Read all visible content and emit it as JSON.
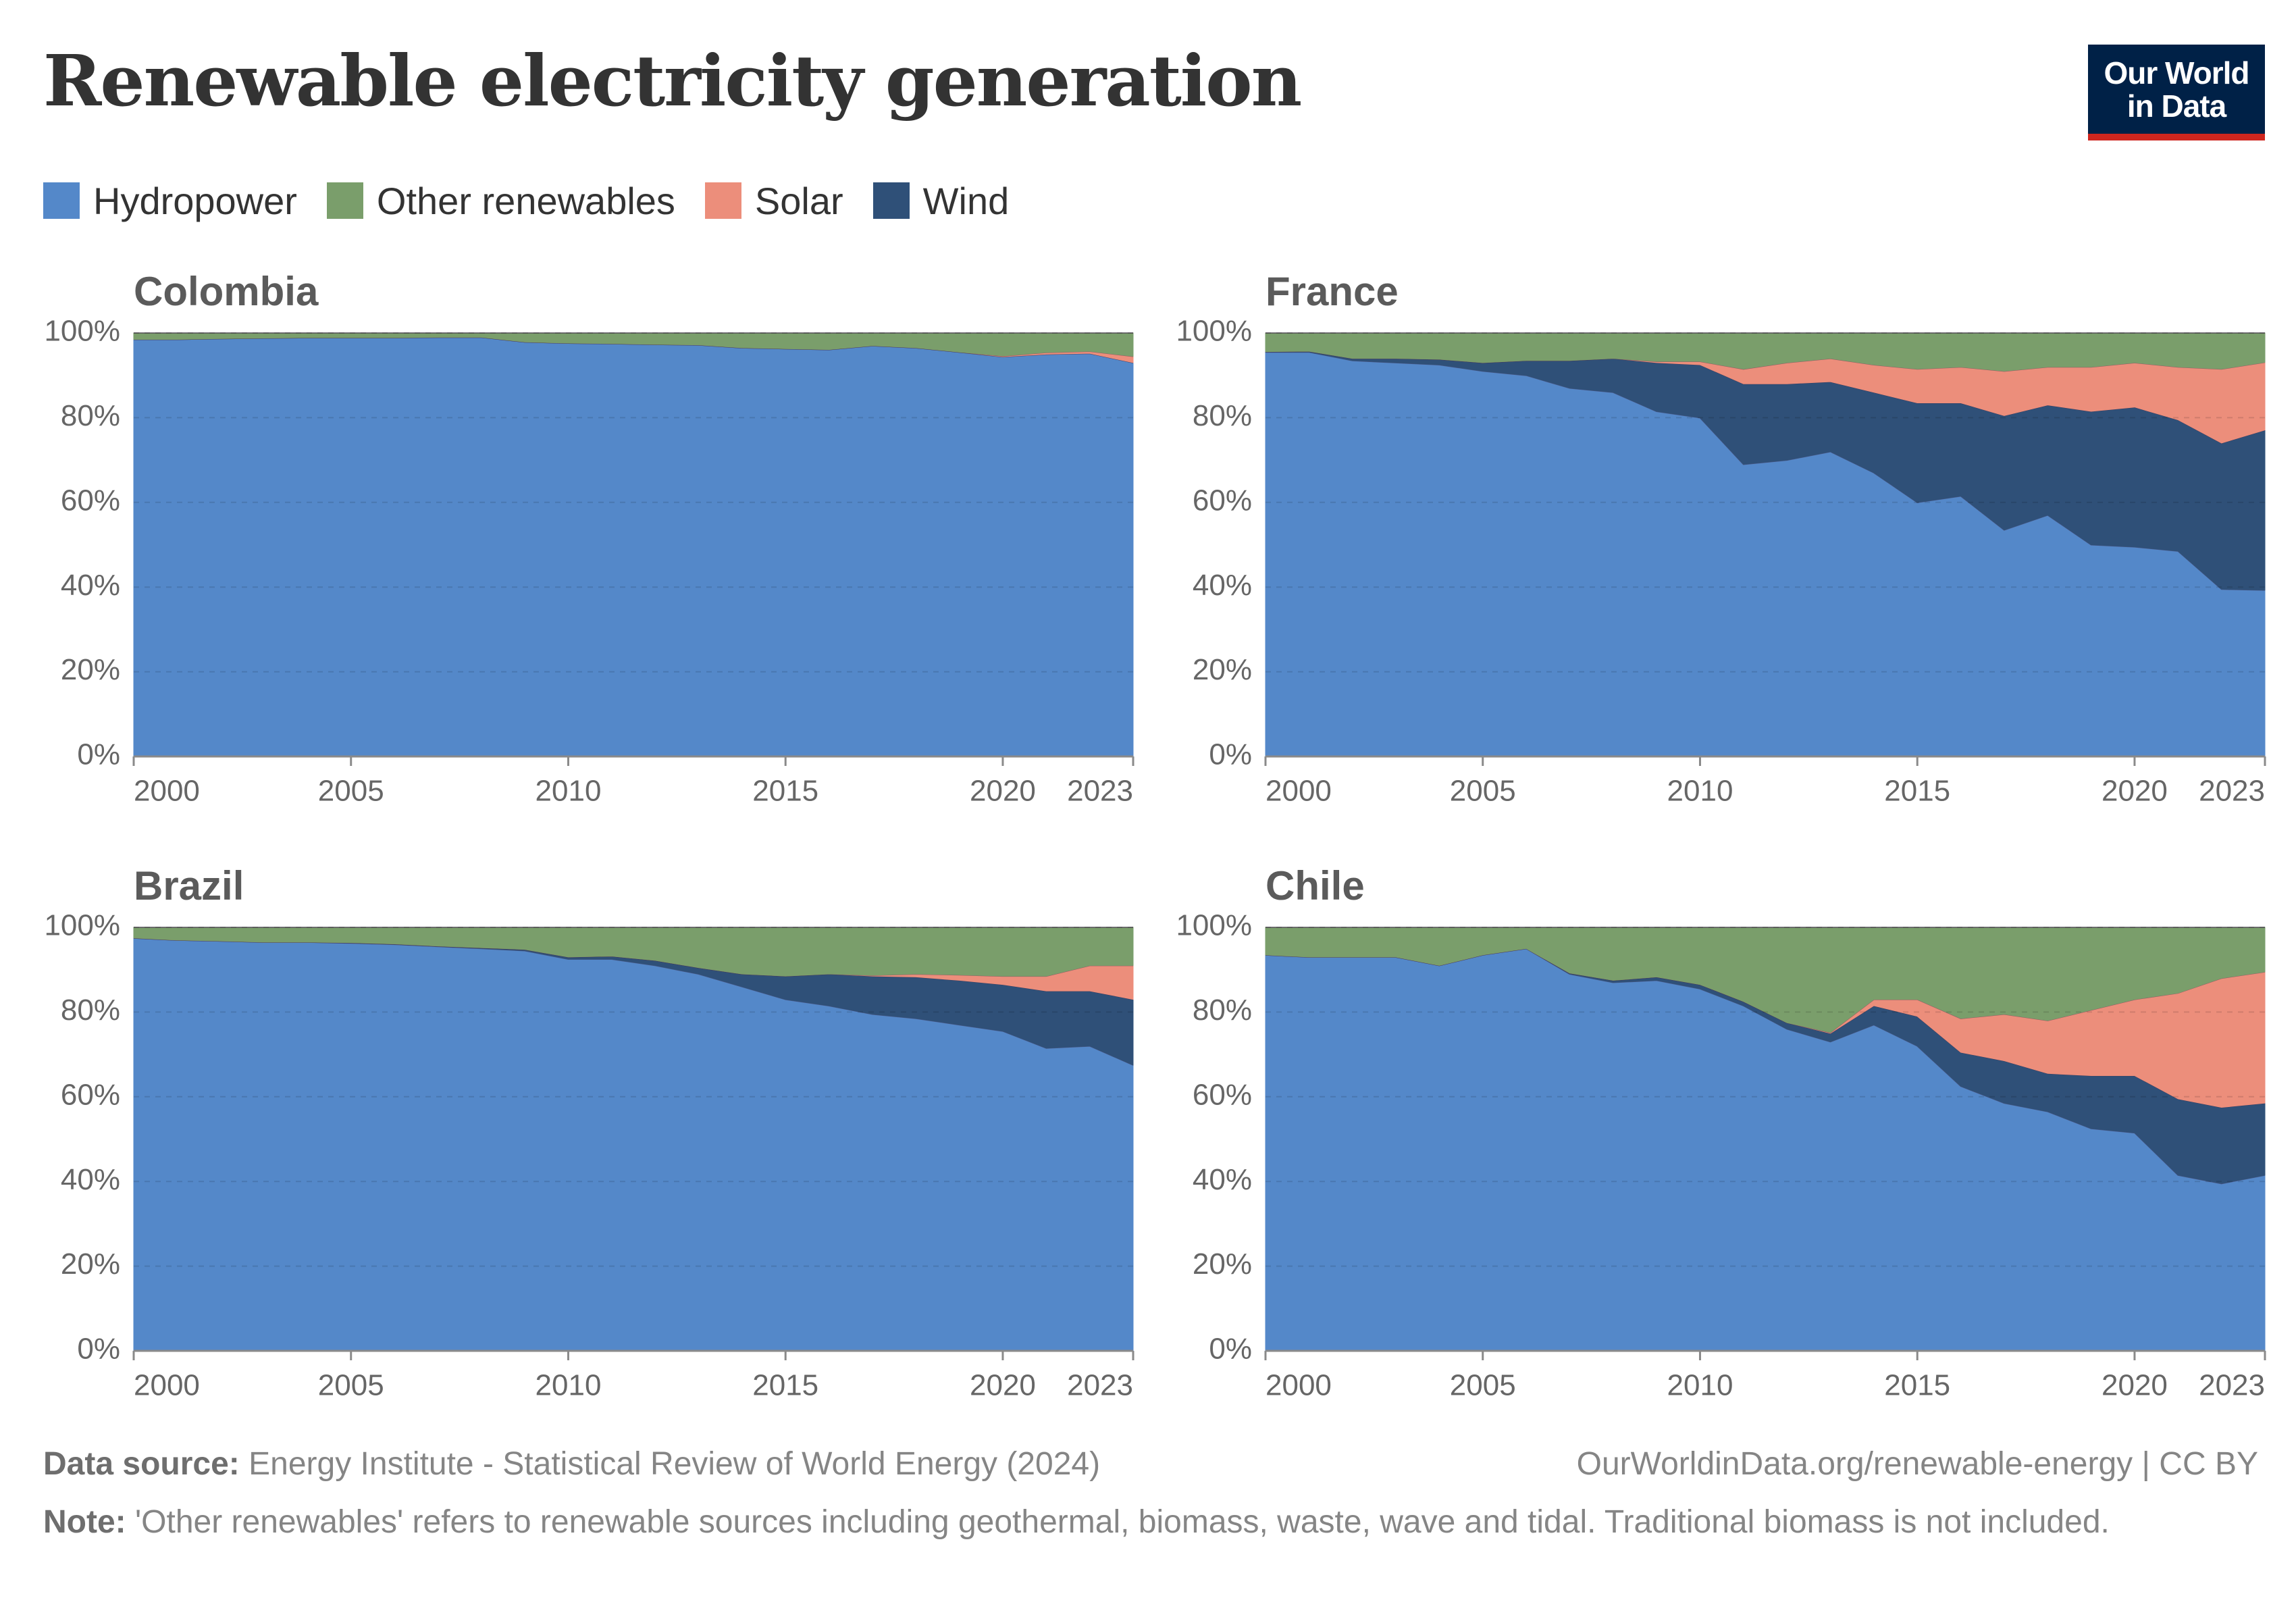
{
  "title": "Renewable electricity generation",
  "logo": {
    "line1": "Our World",
    "line2": "in Data"
  },
  "legend": [
    {
      "name": "Hydropower",
      "color": "#5488c9"
    },
    {
      "name": "Other renewables",
      "color": "#7a9e6b"
    },
    {
      "name": "Solar",
      "color": "#ec8e7b"
    },
    {
      "name": "Wind",
      "color": "#2f5078"
    }
  ],
  "footer": {
    "source_label": "Data source:",
    "source_text": "Energy Institute - Statistical Review of World Energy (2024)",
    "license": "OurWorldinData.org/renewable-energy | CC BY",
    "note_label": "Note:",
    "note_text": "'Other renewables' refers to renewable sources including geothermal, biomass, waste, wave and tidal. Traditional biomass is not included."
  },
  "chart_data": [
    {
      "type": "area",
      "title": "Colombia",
      "x": [
        2000,
        2001,
        2002,
        2003,
        2004,
        2005,
        2006,
        2007,
        2008,
        2009,
        2010,
        2011,
        2012,
        2013,
        2014,
        2015,
        2016,
        2017,
        2018,
        2019,
        2020,
        2021,
        2022,
        2023
      ],
      "series": [
        {
          "name": "Hydropower",
          "values": [
            98.5,
            98.5,
            98.7,
            98.8,
            98.9,
            98.9,
            98.9,
            99.0,
            99.0,
            97.9,
            97.6,
            97.5,
            97.3,
            97.2,
            96.5,
            96.3,
            96.1,
            97.0,
            96.5,
            95.5,
            94.4,
            95.0,
            95.2,
            93.0
          ]
        },
        {
          "name": "Wind",
          "values": [
            0,
            0,
            0,
            0,
            0,
            0,
            0,
            0,
            0,
            0,
            0,
            0,
            0,
            0,
            0,
            0,
            0,
            0,
            0,
            0,
            0,
            0,
            0,
            0
          ]
        },
        {
          "name": "Solar",
          "values": [
            0,
            0,
            0,
            0,
            0,
            0,
            0,
            0,
            0,
            0,
            0,
            0,
            0,
            0,
            0,
            0,
            0,
            0,
            0,
            0,
            0.2,
            0.4,
            0.5,
            1.5
          ]
        },
        {
          "name": "Other renewables",
          "values": [
            1.5,
            1.5,
            1.3,
            1.2,
            1.1,
            1.1,
            1.1,
            1.0,
            1.0,
            2.1,
            2.4,
            2.5,
            2.7,
            2.8,
            3.5,
            3.7,
            3.9,
            3.0,
            3.5,
            4.5,
            5.4,
            4.6,
            4.3,
            5.5
          ]
        }
      ],
      "xticks": [
        2000,
        2005,
        2010,
        2015,
        2020,
        2023
      ],
      "yticks": [
        "0%",
        "20%",
        "40%",
        "60%",
        "80%",
        "100%"
      ],
      "ylim": [
        0,
        100
      ]
    },
    {
      "type": "area",
      "title": "France",
      "x": [
        2000,
        2001,
        2002,
        2003,
        2004,
        2005,
        2006,
        2007,
        2008,
        2009,
        2010,
        2011,
        2012,
        2013,
        2014,
        2015,
        2016,
        2017,
        2018,
        2019,
        2020,
        2021,
        2022,
        2023
      ],
      "series": [
        {
          "name": "Hydropower",
          "values": [
            95.5,
            95.5,
            93.5,
            93.0,
            92.5,
            91.0,
            90.0,
            87.0,
            86.0,
            81.5,
            80.0,
            69.0,
            70.0,
            72.0,
            67.0,
            60.0,
            61.5,
            53.5,
            57.0,
            50.0,
            49.5,
            48.5,
            39.5,
            39.3
          ]
        },
        {
          "name": "Wind",
          "values": [
            0.1,
            0.2,
            0.5,
            1.0,
            1.3,
            2.0,
            3.5,
            6.5,
            8.0,
            11.5,
            12.5,
            19.0,
            18.0,
            16.5,
            19.0,
            23.5,
            22.0,
            27.0,
            26.0,
            31.5,
            33.0,
            31.0,
            34.5,
            37.8
          ]
        },
        {
          "name": "Solar",
          "values": [
            0,
            0,
            0,
            0,
            0,
            0,
            0,
            0,
            0,
            0.3,
            0.8,
            3.5,
            5.0,
            5.5,
            6.5,
            8.0,
            8.5,
            10.5,
            9.0,
            10.5,
            10.5,
            12.5,
            17.5,
            16.0
          ]
        },
        {
          "name": "Other renewables",
          "values": [
            4.4,
            4.3,
            6.0,
            6.0,
            6.2,
            7.0,
            6.5,
            6.5,
            6.0,
            6.7,
            6.7,
            8.5,
            7.0,
            6.0,
            7.5,
            8.5,
            8.0,
            9.0,
            8.0,
            8.0,
            7.0,
            8.0,
            8.5,
            6.9
          ]
        }
      ],
      "xticks": [
        2000,
        2005,
        2010,
        2015,
        2020,
        2023
      ],
      "yticks": [
        "0%",
        "20%",
        "40%",
        "60%",
        "80%",
        "100%"
      ],
      "ylim": [
        0,
        100
      ]
    },
    {
      "type": "area",
      "title": "Brazil",
      "x": [
        2000,
        2001,
        2002,
        2003,
        2004,
        2005,
        2006,
        2007,
        2008,
        2009,
        2010,
        2011,
        2012,
        2013,
        2014,
        2015,
        2016,
        2017,
        2018,
        2019,
        2020,
        2021,
        2022,
        2023
      ],
      "series": [
        {
          "name": "Hydropower",
          "values": [
            97.5,
            97.0,
            96.8,
            96.5,
            96.5,
            96.3,
            96.0,
            95.5,
            95.0,
            94.5,
            92.5,
            92.5,
            91.0,
            89.0,
            86.0,
            83.0,
            81.5,
            79.5,
            78.5,
            77.0,
            75.5,
            71.5,
            72.0,
            67.5
          ]
        },
        {
          "name": "Wind",
          "values": [
            0,
            0,
            0,
            0,
            0,
            0.1,
            0.1,
            0.1,
            0.2,
            0.3,
            0.5,
            0.7,
            1.2,
            1.5,
            3.0,
            5.5,
            7.5,
            9.0,
            9.8,
            10.5,
            11.0,
            13.5,
            13.0,
            15.5
          ]
        },
        {
          "name": "Solar",
          "values": [
            0,
            0,
            0,
            0,
            0,
            0,
            0,
            0,
            0,
            0,
            0,
            0,
            0,
            0,
            0,
            0,
            0,
            0.2,
            0.7,
            1.3,
            2.0,
            3.5,
            6.0,
            8.0
          ]
        },
        {
          "name": "Other renewables",
          "values": [
            2.5,
            3.0,
            3.2,
            3.5,
            3.5,
            3.6,
            3.9,
            4.4,
            4.8,
            5.2,
            7.0,
            6.8,
            7.8,
            9.5,
            11.0,
            11.5,
            11.0,
            11.3,
            11.0,
            11.2,
            11.5,
            11.5,
            9.0,
            9.0
          ]
        }
      ],
      "xticks": [
        2000,
        2005,
        2010,
        2015,
        2020,
        2023
      ],
      "yticks": [
        "0%",
        "20%",
        "40%",
        "60%",
        "80%",
        "100%"
      ],
      "ylim": [
        0,
        100
      ]
    },
    {
      "type": "area",
      "title": "Chile",
      "x": [
        2000,
        2001,
        2002,
        2003,
        2004,
        2005,
        2006,
        2007,
        2008,
        2009,
        2010,
        2011,
        2012,
        2013,
        2014,
        2015,
        2016,
        2017,
        2018,
        2019,
        2020,
        2021,
        2022,
        2023
      ],
      "series": [
        {
          "name": "Hydropower",
          "values": [
            93.5,
            93.0,
            93.0,
            93.0,
            91.0,
            93.5,
            95.0,
            89.0,
            87.0,
            87.5,
            85.5,
            81.5,
            76.0,
            73.0,
            77.0,
            72.0,
            62.5,
            58.5,
            56.5,
            52.5,
            51.5,
            41.5,
            39.5,
            41.5
          ]
        },
        {
          "name": "Wind",
          "values": [
            0,
            0,
            0,
            0,
            0,
            0,
            0,
            0.2,
            0.5,
            0.8,
            1.0,
            1.0,
            1.5,
            2.0,
            4.5,
            7.0,
            8.0,
            10.0,
            9.0,
            12.5,
            13.5,
            18.0,
            18.0,
            17.0
          ]
        },
        {
          "name": "Solar",
          "values": [
            0,
            0,
            0,
            0,
            0,
            0,
            0,
            0,
            0,
            0,
            0,
            0,
            0,
            0.2,
            1.5,
            4.0,
            8.0,
            11.0,
            12.5,
            15.5,
            18.0,
            25.0,
            30.5,
            31.0
          ]
        },
        {
          "name": "Other renewables",
          "values": [
            6.5,
            7.0,
            7.0,
            7.0,
            9.0,
            6.5,
            5.0,
            10.8,
            12.5,
            11.7,
            13.5,
            17.5,
            22.5,
            24.8,
            17.0,
            17.0,
            21.5,
            20.5,
            22.0,
            19.5,
            17.0,
            15.5,
            12.0,
            10.5
          ]
        }
      ],
      "xticks": [
        2000,
        2005,
        2010,
        2015,
        2020,
        2023
      ],
      "yticks": [
        "0%",
        "20%",
        "40%",
        "60%",
        "80%",
        "100%"
      ],
      "ylim": [
        0,
        100
      ]
    }
  ]
}
